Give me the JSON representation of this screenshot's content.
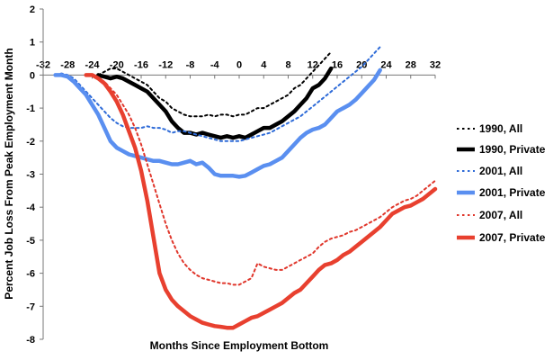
{
  "chart_data": {
    "type": "line",
    "title": "",
    "xlabel": "Months Since Employment Bottom",
    "ylabel": "Percent Job Loss From Peak Employment Month",
    "xlim": [
      -32,
      32
    ],
    "ylim": [
      -8,
      2
    ],
    "x_ticks": [
      -32,
      -28,
      -24,
      -20,
      -16,
      -12,
      -8,
      -4,
      0,
      4,
      8,
      12,
      16,
      20,
      24,
      28,
      32
    ],
    "y_ticks": [
      2,
      1,
      0,
      -1,
      -2,
      -3,
      -4,
      -5,
      -6,
      -7,
      -8
    ],
    "grid": false,
    "legend_position": "right",
    "series": [
      {
        "name": "1990, All",
        "color": "#000000",
        "style": "dotted",
        "points": [
          [
            -23,
            0
          ],
          [
            -22,
            0.1
          ],
          [
            -21,
            0.2
          ],
          [
            -20,
            0.2
          ],
          [
            -19,
            0.1
          ],
          [
            -18,
            0
          ],
          [
            -17,
            -0.1
          ],
          [
            -16,
            -0.2
          ],
          [
            -15,
            -0.3
          ],
          [
            -14,
            -0.5
          ],
          [
            -13,
            -0.7
          ],
          [
            -12,
            -0.8
          ],
          [
            -11,
            -1.0
          ],
          [
            -10,
            -1.1
          ],
          [
            -9,
            -1.2
          ],
          [
            -8,
            -1.25
          ],
          [
            -7,
            -1.25
          ],
          [
            -6,
            -1.25
          ],
          [
            -5,
            -1.2
          ],
          [
            -4,
            -1.25
          ],
          [
            -3,
            -1.2
          ],
          [
            -2,
            -1.2
          ],
          [
            -1,
            -1.25
          ],
          [
            0,
            -1.2
          ],
          [
            1,
            -1.2
          ],
          [
            2,
            -1.1
          ],
          [
            3,
            -1.0
          ],
          [
            4,
            -1.0
          ],
          [
            5,
            -0.9
          ],
          [
            6,
            -0.8
          ],
          [
            7,
            -0.7
          ],
          [
            8,
            -0.6
          ],
          [
            9,
            -0.4
          ],
          [
            10,
            -0.3
          ],
          [
            11,
            -0.1
          ],
          [
            12,
            0.1
          ],
          [
            13,
            0.3
          ],
          [
            14,
            0.5
          ],
          [
            15,
            0.7
          ]
        ]
      },
      {
        "name": "1990, Private",
        "color": "#000000",
        "style": "solid-thick",
        "points": [
          [
            -23,
            0
          ],
          [
            -22,
            -0.05
          ],
          [
            -21,
            -0.1
          ],
          [
            -20,
            -0.05
          ],
          [
            -19,
            -0.1
          ],
          [
            -18,
            -0.2
          ],
          [
            -17,
            -0.3
          ],
          [
            -16,
            -0.4
          ],
          [
            -15,
            -0.5
          ],
          [
            -14,
            -0.7
          ],
          [
            -13,
            -0.9
          ],
          [
            -12,
            -1.1
          ],
          [
            -11,
            -1.4
          ],
          [
            -10,
            -1.6
          ],
          [
            -9,
            -1.75
          ],
          [
            -8,
            -1.75
          ],
          [
            -7,
            -1.8
          ],
          [
            -6,
            -1.75
          ],
          [
            -5,
            -1.8
          ],
          [
            -4,
            -1.85
          ],
          [
            -3,
            -1.9
          ],
          [
            -2,
            -1.85
          ],
          [
            -1,
            -1.9
          ],
          [
            0,
            -1.85
          ],
          [
            1,
            -1.9
          ],
          [
            2,
            -1.8
          ],
          [
            3,
            -1.7
          ],
          [
            4,
            -1.6
          ],
          [
            5,
            -1.6
          ],
          [
            6,
            -1.5
          ],
          [
            7,
            -1.4
          ],
          [
            8,
            -1.25
          ],
          [
            9,
            -1.1
          ],
          [
            10,
            -0.9
          ],
          [
            11,
            -0.7
          ],
          [
            12,
            -0.4
          ],
          [
            13,
            -0.3
          ],
          [
            14,
            -0.1
          ],
          [
            15,
            0.2
          ]
        ]
      },
      {
        "name": "2001, All",
        "color": "#2e6bd8",
        "style": "dotted",
        "points": [
          [
            -30,
            0
          ],
          [
            -29,
            0.05
          ],
          [
            -28,
            0
          ],
          [
            -27,
            -0.1
          ],
          [
            -26,
            -0.3
          ],
          [
            -25,
            -0.5
          ],
          [
            -24,
            -0.7
          ],
          [
            -23,
            -0.9
          ],
          [
            -22,
            -1.1
          ],
          [
            -21,
            -1.3
          ],
          [
            -20,
            -1.45
          ],
          [
            -19,
            -1.55
          ],
          [
            -18,
            -1.6
          ],
          [
            -17,
            -1.6
          ],
          [
            -16,
            -1.6
          ],
          [
            -15,
            -1.55
          ],
          [
            -14,
            -1.6
          ],
          [
            -13,
            -1.6
          ],
          [
            -12,
            -1.65
          ],
          [
            -11,
            -1.75
          ],
          [
            -10,
            -1.7
          ],
          [
            -9,
            -1.7
          ],
          [
            -8,
            -1.75
          ],
          [
            -7,
            -1.8
          ],
          [
            -6,
            -1.85
          ],
          [
            -5,
            -1.9
          ],
          [
            -4,
            -1.95
          ],
          [
            -3,
            -2.0
          ],
          [
            -2,
            -2.0
          ],
          [
            -1,
            -2.0
          ],
          [
            0,
            -2.0
          ],
          [
            1,
            -1.95
          ],
          [
            2,
            -1.9
          ],
          [
            3,
            -1.85
          ],
          [
            4,
            -1.8
          ],
          [
            5,
            -1.75
          ],
          [
            6,
            -1.65
          ],
          [
            7,
            -1.55
          ],
          [
            8,
            -1.45
          ],
          [
            9,
            -1.35
          ],
          [
            10,
            -1.25
          ],
          [
            11,
            -1.1
          ],
          [
            12,
            -0.95
          ],
          [
            13,
            -0.8
          ],
          [
            14,
            -0.65
          ],
          [
            15,
            -0.5
          ],
          [
            16,
            -0.35
          ],
          [
            17,
            -0.2
          ],
          [
            18,
            -0.05
          ],
          [
            19,
            0.1
          ],
          [
            20,
            0.25
          ],
          [
            21,
            0.45
          ],
          [
            22,
            0.65
          ],
          [
            23,
            0.85
          ]
        ]
      },
      {
        "name": "2001, Private",
        "color": "#5a8ff0",
        "style": "solid-thick",
        "points": [
          [
            -30,
            0
          ],
          [
            -29,
            0
          ],
          [
            -28,
            -0.05
          ],
          [
            -27,
            -0.2
          ],
          [
            -26,
            -0.4
          ],
          [
            -25,
            -0.6
          ],
          [
            -24,
            -0.9
          ],
          [
            -23,
            -1.2
          ],
          [
            -22,
            -1.6
          ],
          [
            -21,
            -2.0
          ],
          [
            -20,
            -2.2
          ],
          [
            -19,
            -2.3
          ],
          [
            -18,
            -2.4
          ],
          [
            -17,
            -2.45
          ],
          [
            -16,
            -2.5
          ],
          [
            -15,
            -2.55
          ],
          [
            -14,
            -2.6
          ],
          [
            -13,
            -2.6
          ],
          [
            -12,
            -2.65
          ],
          [
            -11,
            -2.7
          ],
          [
            -10,
            -2.7
          ],
          [
            -9,
            -2.65
          ],
          [
            -8,
            -2.6
          ],
          [
            -7,
            -2.7
          ],
          [
            -6,
            -2.65
          ],
          [
            -5,
            -2.8
          ],
          [
            -4,
            -3.0
          ],
          [
            -3,
            -3.05
          ],
          [
            -2,
            -3.05
          ],
          [
            -1,
            -3.05
          ],
          [
            0,
            -3.08
          ],
          [
            1,
            -3.05
          ],
          [
            2,
            -2.95
          ],
          [
            3,
            -2.85
          ],
          [
            4,
            -2.75
          ],
          [
            5,
            -2.7
          ],
          [
            6,
            -2.6
          ],
          [
            7,
            -2.5
          ],
          [
            8,
            -2.3
          ],
          [
            9,
            -2.1
          ],
          [
            10,
            -1.9
          ],
          [
            11,
            -1.75
          ],
          [
            12,
            -1.65
          ],
          [
            13,
            -1.6
          ],
          [
            14,
            -1.5
          ],
          [
            15,
            -1.3
          ],
          [
            16,
            -1.1
          ],
          [
            17,
            -1.0
          ],
          [
            18,
            -0.9
          ],
          [
            19,
            -0.75
          ],
          [
            20,
            -0.55
          ],
          [
            21,
            -0.35
          ],
          [
            22,
            -0.15
          ],
          [
            23,
            0.15
          ]
        ]
      },
      {
        "name": "2007, All",
        "color": "#e0362b",
        "style": "dotted",
        "points": [
          [
            -24,
            0
          ],
          [
            -23,
            -0.1
          ],
          [
            -22,
            -0.2
          ],
          [
            -21,
            -0.4
          ],
          [
            -20,
            -0.6
          ],
          [
            -19,
            -0.9
          ],
          [
            -18,
            -1.2
          ],
          [
            -17,
            -1.6
          ],
          [
            -16,
            -2.1
          ],
          [
            -15,
            -2.7
          ],
          [
            -14,
            -3.3
          ],
          [
            -13,
            -3.9
          ],
          [
            -12,
            -4.5
          ],
          [
            -11,
            -5.0
          ],
          [
            -10,
            -5.4
          ],
          [
            -9,
            -5.7
          ],
          [
            -8,
            -5.9
          ],
          [
            -7,
            -6.05
          ],
          [
            -6,
            -6.15
          ],
          [
            -5,
            -6.2
          ],
          [
            -4,
            -6.25
          ],
          [
            -3,
            -6.3
          ],
          [
            -2,
            -6.3
          ],
          [
            -1,
            -6.35
          ],
          [
            0,
            -6.35
          ],
          [
            1,
            -6.25
          ],
          [
            2,
            -6.15
          ],
          [
            3,
            -5.7
          ],
          [
            4,
            -5.8
          ],
          [
            5,
            -5.85
          ],
          [
            6,
            -5.9
          ],
          [
            7,
            -5.9
          ],
          [
            8,
            -5.8
          ],
          [
            9,
            -5.7
          ],
          [
            10,
            -5.6
          ],
          [
            11,
            -5.5
          ],
          [
            12,
            -5.4
          ],
          [
            13,
            -5.2
          ],
          [
            14,
            -5.05
          ],
          [
            15,
            -4.95
          ],
          [
            16,
            -4.9
          ],
          [
            17,
            -4.85
          ],
          [
            18,
            -4.75
          ],
          [
            19,
            -4.7
          ],
          [
            20,
            -4.6
          ],
          [
            21,
            -4.5
          ],
          [
            22,
            -4.4
          ],
          [
            23,
            -4.3
          ],
          [
            24,
            -4.15
          ],
          [
            25,
            -4.0
          ],
          [
            26,
            -3.9
          ],
          [
            27,
            -3.8
          ],
          [
            28,
            -3.75
          ],
          [
            29,
            -3.65
          ],
          [
            30,
            -3.5
          ],
          [
            31,
            -3.35
          ],
          [
            32,
            -3.2
          ]
        ]
      },
      {
        "name": "2007, Private",
        "color": "#e8402f",
        "style": "solid-thick",
        "points": [
          [
            -25,
            0
          ],
          [
            -24,
            0
          ],
          [
            -23,
            -0.1
          ],
          [
            -22,
            -0.25
          ],
          [
            -21,
            -0.5
          ],
          [
            -20,
            -0.8
          ],
          [
            -19,
            -1.2
          ],
          [
            -18,
            -1.7
          ],
          [
            -17,
            -2.2
          ],
          [
            -16,
            -2.9
          ],
          [
            -15,
            -3.8
          ],
          [
            -14,
            -4.9
          ],
          [
            -13,
            -6.0
          ],
          [
            -12,
            -6.5
          ],
          [
            -11,
            -6.8
          ],
          [
            -10,
            -7.0
          ],
          [
            -9,
            -7.15
          ],
          [
            -8,
            -7.3
          ],
          [
            -7,
            -7.4
          ],
          [
            -6,
            -7.5
          ],
          [
            -5,
            -7.55
          ],
          [
            -4,
            -7.6
          ],
          [
            -3,
            -7.62
          ],
          [
            -2,
            -7.65
          ],
          [
            -1,
            -7.65
          ],
          [
            0,
            -7.55
          ],
          [
            1,
            -7.45
          ],
          [
            2,
            -7.35
          ],
          [
            3,
            -7.3
          ],
          [
            4,
            -7.2
          ],
          [
            5,
            -7.1
          ],
          [
            6,
            -7.0
          ],
          [
            7,
            -6.9
          ],
          [
            8,
            -6.75
          ],
          [
            9,
            -6.6
          ],
          [
            10,
            -6.5
          ],
          [
            11,
            -6.3
          ],
          [
            12,
            -6.1
          ],
          [
            13,
            -5.9
          ],
          [
            14,
            -5.75
          ],
          [
            15,
            -5.7
          ],
          [
            16,
            -5.6
          ],
          [
            17,
            -5.45
          ],
          [
            18,
            -5.35
          ],
          [
            19,
            -5.2
          ],
          [
            20,
            -5.05
          ],
          [
            21,
            -4.9
          ],
          [
            22,
            -4.75
          ],
          [
            23,
            -4.6
          ],
          [
            24,
            -4.4
          ],
          [
            25,
            -4.2
          ],
          [
            26,
            -4.1
          ],
          [
            27,
            -4.0
          ],
          [
            28,
            -3.95
          ],
          [
            29,
            -3.85
          ],
          [
            30,
            -3.75
          ],
          [
            31,
            -3.6
          ],
          [
            32,
            -3.45
          ]
        ]
      }
    ]
  }
}
